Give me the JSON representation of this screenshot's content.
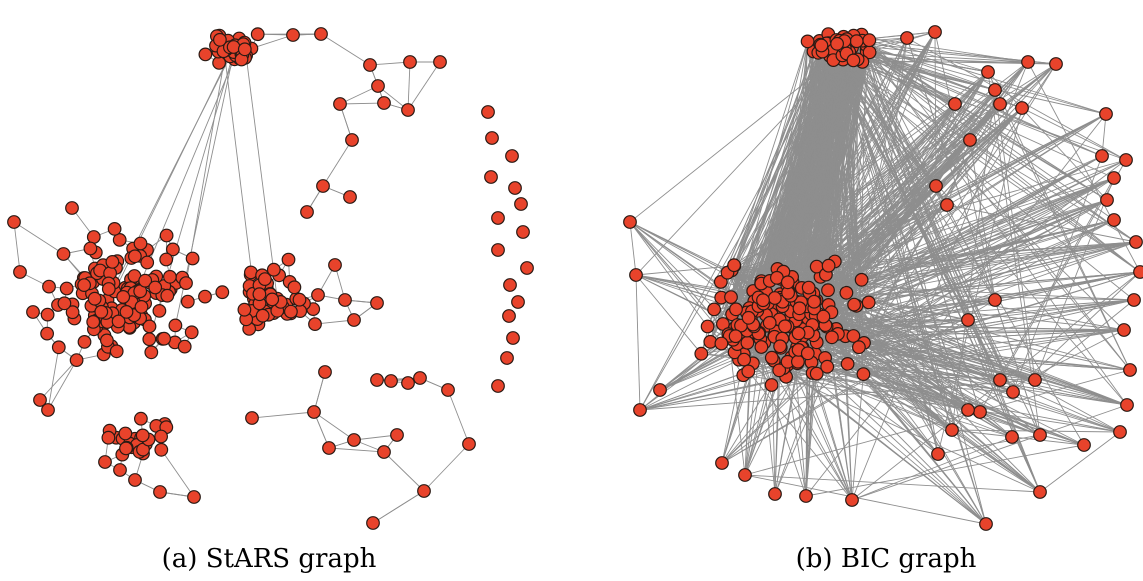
{
  "panels": [
    {
      "caption": "(a) StARS graph",
      "node_color": "#e8432b",
      "edge_color": "#8e8e8e"
    },
    {
      "caption": "(b) BIC graph",
      "node_color": "#e8432b",
      "edge_color": "#8e8e8e"
    }
  ]
}
